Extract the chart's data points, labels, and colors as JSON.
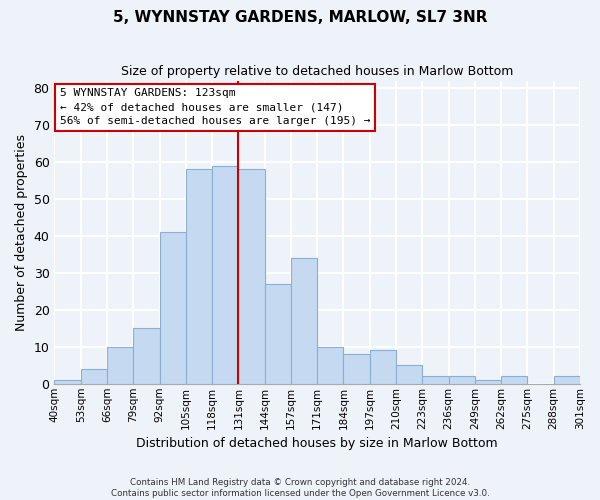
{
  "title": "5, WYNNSTAY GARDENS, MARLOW, SL7 3NR",
  "subtitle": "Size of property relative to detached houses in Marlow Bottom",
  "xlabel": "Distribution of detached houses by size in Marlow Bottom",
  "ylabel": "Number of detached properties",
  "bar_labels": [
    "40sqm",
    "53sqm",
    "66sqm",
    "79sqm",
    "92sqm",
    "105sqm",
    "118sqm",
    "131sqm",
    "144sqm",
    "157sqm",
    "171sqm",
    "184sqm",
    "197sqm",
    "210sqm",
    "223sqm",
    "236sqm",
    "249sqm",
    "262sqm",
    "275sqm",
    "288sqm",
    "301sqm"
  ],
  "bar_heights": [
    1,
    4,
    10,
    15,
    41,
    58,
    59,
    58,
    27,
    34,
    10,
    8,
    9,
    5,
    2,
    2,
    1,
    2,
    0,
    2
  ],
  "bar_color": "#c5d9f1",
  "bar_edge_color": "#8bafd4",
  "vline_x_index": 6,
  "vline_color": "#cc0000",
  "ylim": [
    0,
    82
  ],
  "yticks": [
    0,
    10,
    20,
    30,
    40,
    50,
    60,
    70,
    80
  ],
  "annotation_title": "5 WYNNSTAY GARDENS: 123sqm",
  "annotation_line1": "← 42% of detached houses are smaller (147)",
  "annotation_line2": "56% of semi-detached houses are larger (195) →",
  "annotation_box_color": "#ffffff",
  "annotation_box_edge": "#cc0000",
  "footer1": "Contains HM Land Registry data © Crown copyright and database right 2024.",
  "footer2": "Contains public sector information licensed under the Open Government Licence v3.0.",
  "background_color": "#eef2f9",
  "grid_color": "#ffffff"
}
